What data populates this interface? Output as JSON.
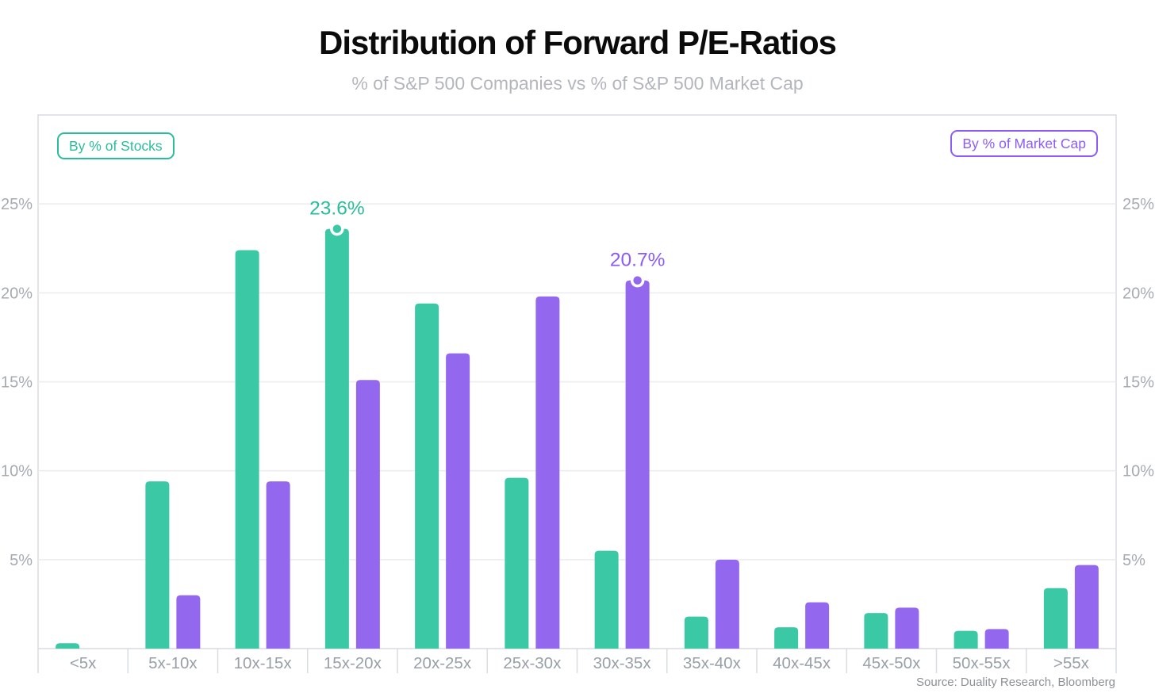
{
  "header": {
    "title": "Distribution of Forward P/E-Ratios",
    "subtitle": "% of S&P 500 Companies vs % of S&P 500 Market Cap"
  },
  "footer": {
    "source": "Source: Duality Research, Bloomberg"
  },
  "colors": {
    "background": "#ffffff",
    "title": "#0b0b0c",
    "subtitle": "#b3b7bd",
    "grid": "#ececee",
    "plot_border": "#d9dce0",
    "axis_label": "#a6abb3",
    "category_label": "#9aa0a8",
    "source": "#8c9097",
    "stocks_bar": "#3bc9a5",
    "stocks_text": "#2bbd9b",
    "market_cap_bar": "#9468ee",
    "market_cap_text": "#8b5cf6",
    "marker_ring": "#ffffff"
  },
  "chart_data": {
    "type": "bar",
    "title": "Distribution of Forward P/E-Ratios",
    "subtitle": "% of S&P 500 Companies vs % of S&P 500 Market Cap",
    "categories": [
      "<5x",
      "5x-10x",
      "10x-15x",
      "15x-20x",
      "20x-25x",
      "25x-30x",
      "30x-35x",
      "35x-40x",
      "40x-45x",
      "45x-50x",
      "50x-55x",
      ">55x"
    ],
    "series": [
      {
        "name": "By % of Stocks",
        "color": "#3bc9a5",
        "text_color": "#2bbd9b",
        "values": [
          0.3,
          9.4,
          22.4,
          23.6,
          19.4,
          9.6,
          5.5,
          1.8,
          1.2,
          2.0,
          1.0,
          3.4
        ]
      },
      {
        "name": "By % of Market Cap",
        "color": "#9468ee",
        "text_color": "#8b5cf6",
        "values": [
          0,
          3.0,
          9.4,
          15.1,
          16.6,
          19.8,
          20.7,
          5.0,
          2.6,
          2.3,
          1.1,
          4.7
        ]
      }
    ],
    "annotations": [
      {
        "series": 0,
        "category_index": 3,
        "label": "23.6%"
      },
      {
        "series": 1,
        "category_index": 6,
        "label": "20.7%"
      }
    ],
    "y_ticks": [
      5,
      10,
      15,
      20,
      25
    ],
    "y_tick_labels": [
      "5%",
      "10%",
      "15%",
      "20%",
      "25%"
    ],
    "ylim": [
      0,
      30
    ],
    "grid": true,
    "xlabel": "",
    "ylabel": "",
    "legend_position": "inside-top: stocks left, market cap right",
    "source": "Source: Duality Research, Bloomberg"
  }
}
